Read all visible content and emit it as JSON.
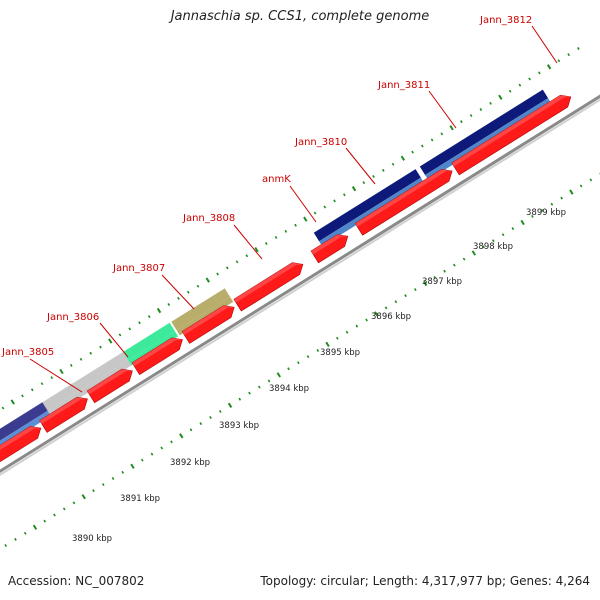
{
  "title": "Jannaschia sp. CCS1, complete genome",
  "accession": "Accession: NC_007802",
  "summary": "Topology: circular; Length: 4,317,977 bp; Genes: 4,264",
  "colors": {
    "cds": "#ff1a1a",
    "backbone": "#9e9e9e",
    "tick_green": "#1e8c1e",
    "label_red": "#cc0000"
  },
  "genes": [
    {
      "name": "Jann_3805",
      "color_top": "#3b3b8f",
      "color_bottom": "#5a8fd6"
    },
    {
      "name": "Jann_3806",
      "color_top": "#3b3b8f",
      "color_bottom": "#5a8fd6"
    },
    {
      "name": "Jann_3807",
      "color_top": "#c7c7c7",
      "color_bottom": "#c7c7c7"
    },
    {
      "name": "Jann_3808",
      "color_top": "#3dea9b",
      "color_bottom": "#3dea9b"
    },
    {
      "name": "anmK",
      "color_top": "#b8ad6a",
      "color_bottom": "#b8ad6a"
    },
    {
      "name": "Jann_3810",
      "color_top": "#ffffff",
      "color_bottom": "#ffffff"
    },
    {
      "name": "Jann_3811",
      "color_top": "#0d1a7a",
      "color_bottom": "#4f86c9"
    },
    {
      "name": "Jann_3812",
      "color_top": "#0d1a7a",
      "color_bottom": "#4f86c9"
    }
  ],
  "scale_labels": [
    "3890 kbp",
    "3891 kbp",
    "3892 kbp",
    "3893 kbp",
    "3894 kbp",
    "3895 kbp",
    "3896 kbp",
    "3897 kbp",
    "3898 kbp",
    "3899 kbp"
  ]
}
